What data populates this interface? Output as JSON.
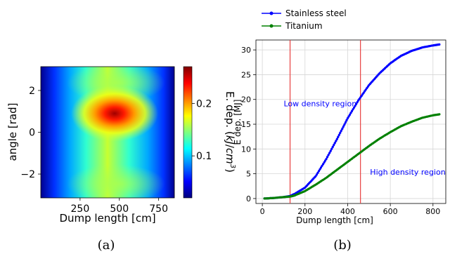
{
  "chart_data": [
    {
      "type": "heatmap",
      "panel_label": "(a)",
      "xlabel": "Dump length [cm]",
      "ylabel": "angle [rad]",
      "xlim": [
        0,
        850
      ],
      "ylim": [
        -3.14,
        3.14
      ],
      "x_ticks": [
        250,
        500,
        750
      ],
      "x_tick_labels": [
        "250",
        "500",
        "750"
      ],
      "y_ticks": [
        2,
        0,
        -2
      ],
      "y_tick_labels": [
        "2",
        "0",
        "−2"
      ],
      "colorbar": {
        "label": "E. dep. (kJ/cm³)",
        "range": [
          0.02,
          0.27
        ],
        "ticks": [
          0.1,
          0.2
        ],
        "tick_labels": [
          "0.1",
          "0.2"
        ],
        "colormap": "jet"
      },
      "hotspot": {
        "x": 470,
        "y": 0.9,
        "value": 0.27
      },
      "colors": {
        "jet": [
          "#00007f",
          "#0000ff",
          "#007fff",
          "#00ffff",
          "#7fff7f",
          "#ffff00",
          "#ff7f00",
          "#ff0000",
          "#7f0000"
        ]
      }
    },
    {
      "type": "line",
      "panel_label": "(b)",
      "xlabel": "Dump length [cm]",
      "ylabel": "E dep. [MJ]",
      "xlim": [
        -30,
        860
      ],
      "ylim": [
        -1,
        32
      ],
      "x_ticks": [
        0,
        200,
        400,
        600,
        800
      ],
      "x_tick_labels": [
        "0",
        "200",
        "400",
        "600",
        "800"
      ],
      "y_ticks": [
        0,
        5,
        10,
        15,
        20,
        25,
        30
      ],
      "y_tick_labels": [
        "0",
        "5",
        "10",
        "15",
        "20",
        "25",
        "30"
      ],
      "grid": true,
      "legend_position": "top-left (above plot)",
      "vlines": [
        130,
        460
      ],
      "annotations": {
        "low": "Low density region",
        "high": "High density region"
      },
      "annotation_anchor": {
        "low": {
          "x": 100,
          "y": 18.6
        },
        "high": {
          "x": 505,
          "y": 4.8
        }
      },
      "series": [
        {
          "name": "Stainless steel",
          "color": "#0000ff",
          "x": [
            10,
            50,
            100,
            130,
            150,
            200,
            250,
            300,
            350,
            400,
            450,
            500,
            550,
            600,
            650,
            700,
            750,
            800,
            830
          ],
          "y": [
            0,
            0.1,
            0.3,
            0.5,
            0.9,
            2.2,
            4.5,
            8.0,
            12.0,
            16.2,
            19.8,
            22.9,
            25.3,
            27.3,
            28.8,
            29.8,
            30.5,
            30.9,
            31.1
          ]
        },
        {
          "name": "Titanium",
          "color": "#008000",
          "x": [
            10,
            50,
            100,
            130,
            150,
            200,
            250,
            300,
            350,
            400,
            450,
            500,
            550,
            600,
            650,
            700,
            750,
            800,
            830
          ],
          "y": [
            0,
            0.1,
            0.3,
            0.4,
            0.6,
            1.5,
            2.8,
            4.2,
            5.8,
            7.4,
            9.0,
            10.6,
            12.1,
            13.4,
            14.6,
            15.5,
            16.3,
            16.8,
            17.0
          ]
        }
      ],
      "vline_color": "#e84040",
      "grid_color": "#d6d6d6"
    }
  ]
}
